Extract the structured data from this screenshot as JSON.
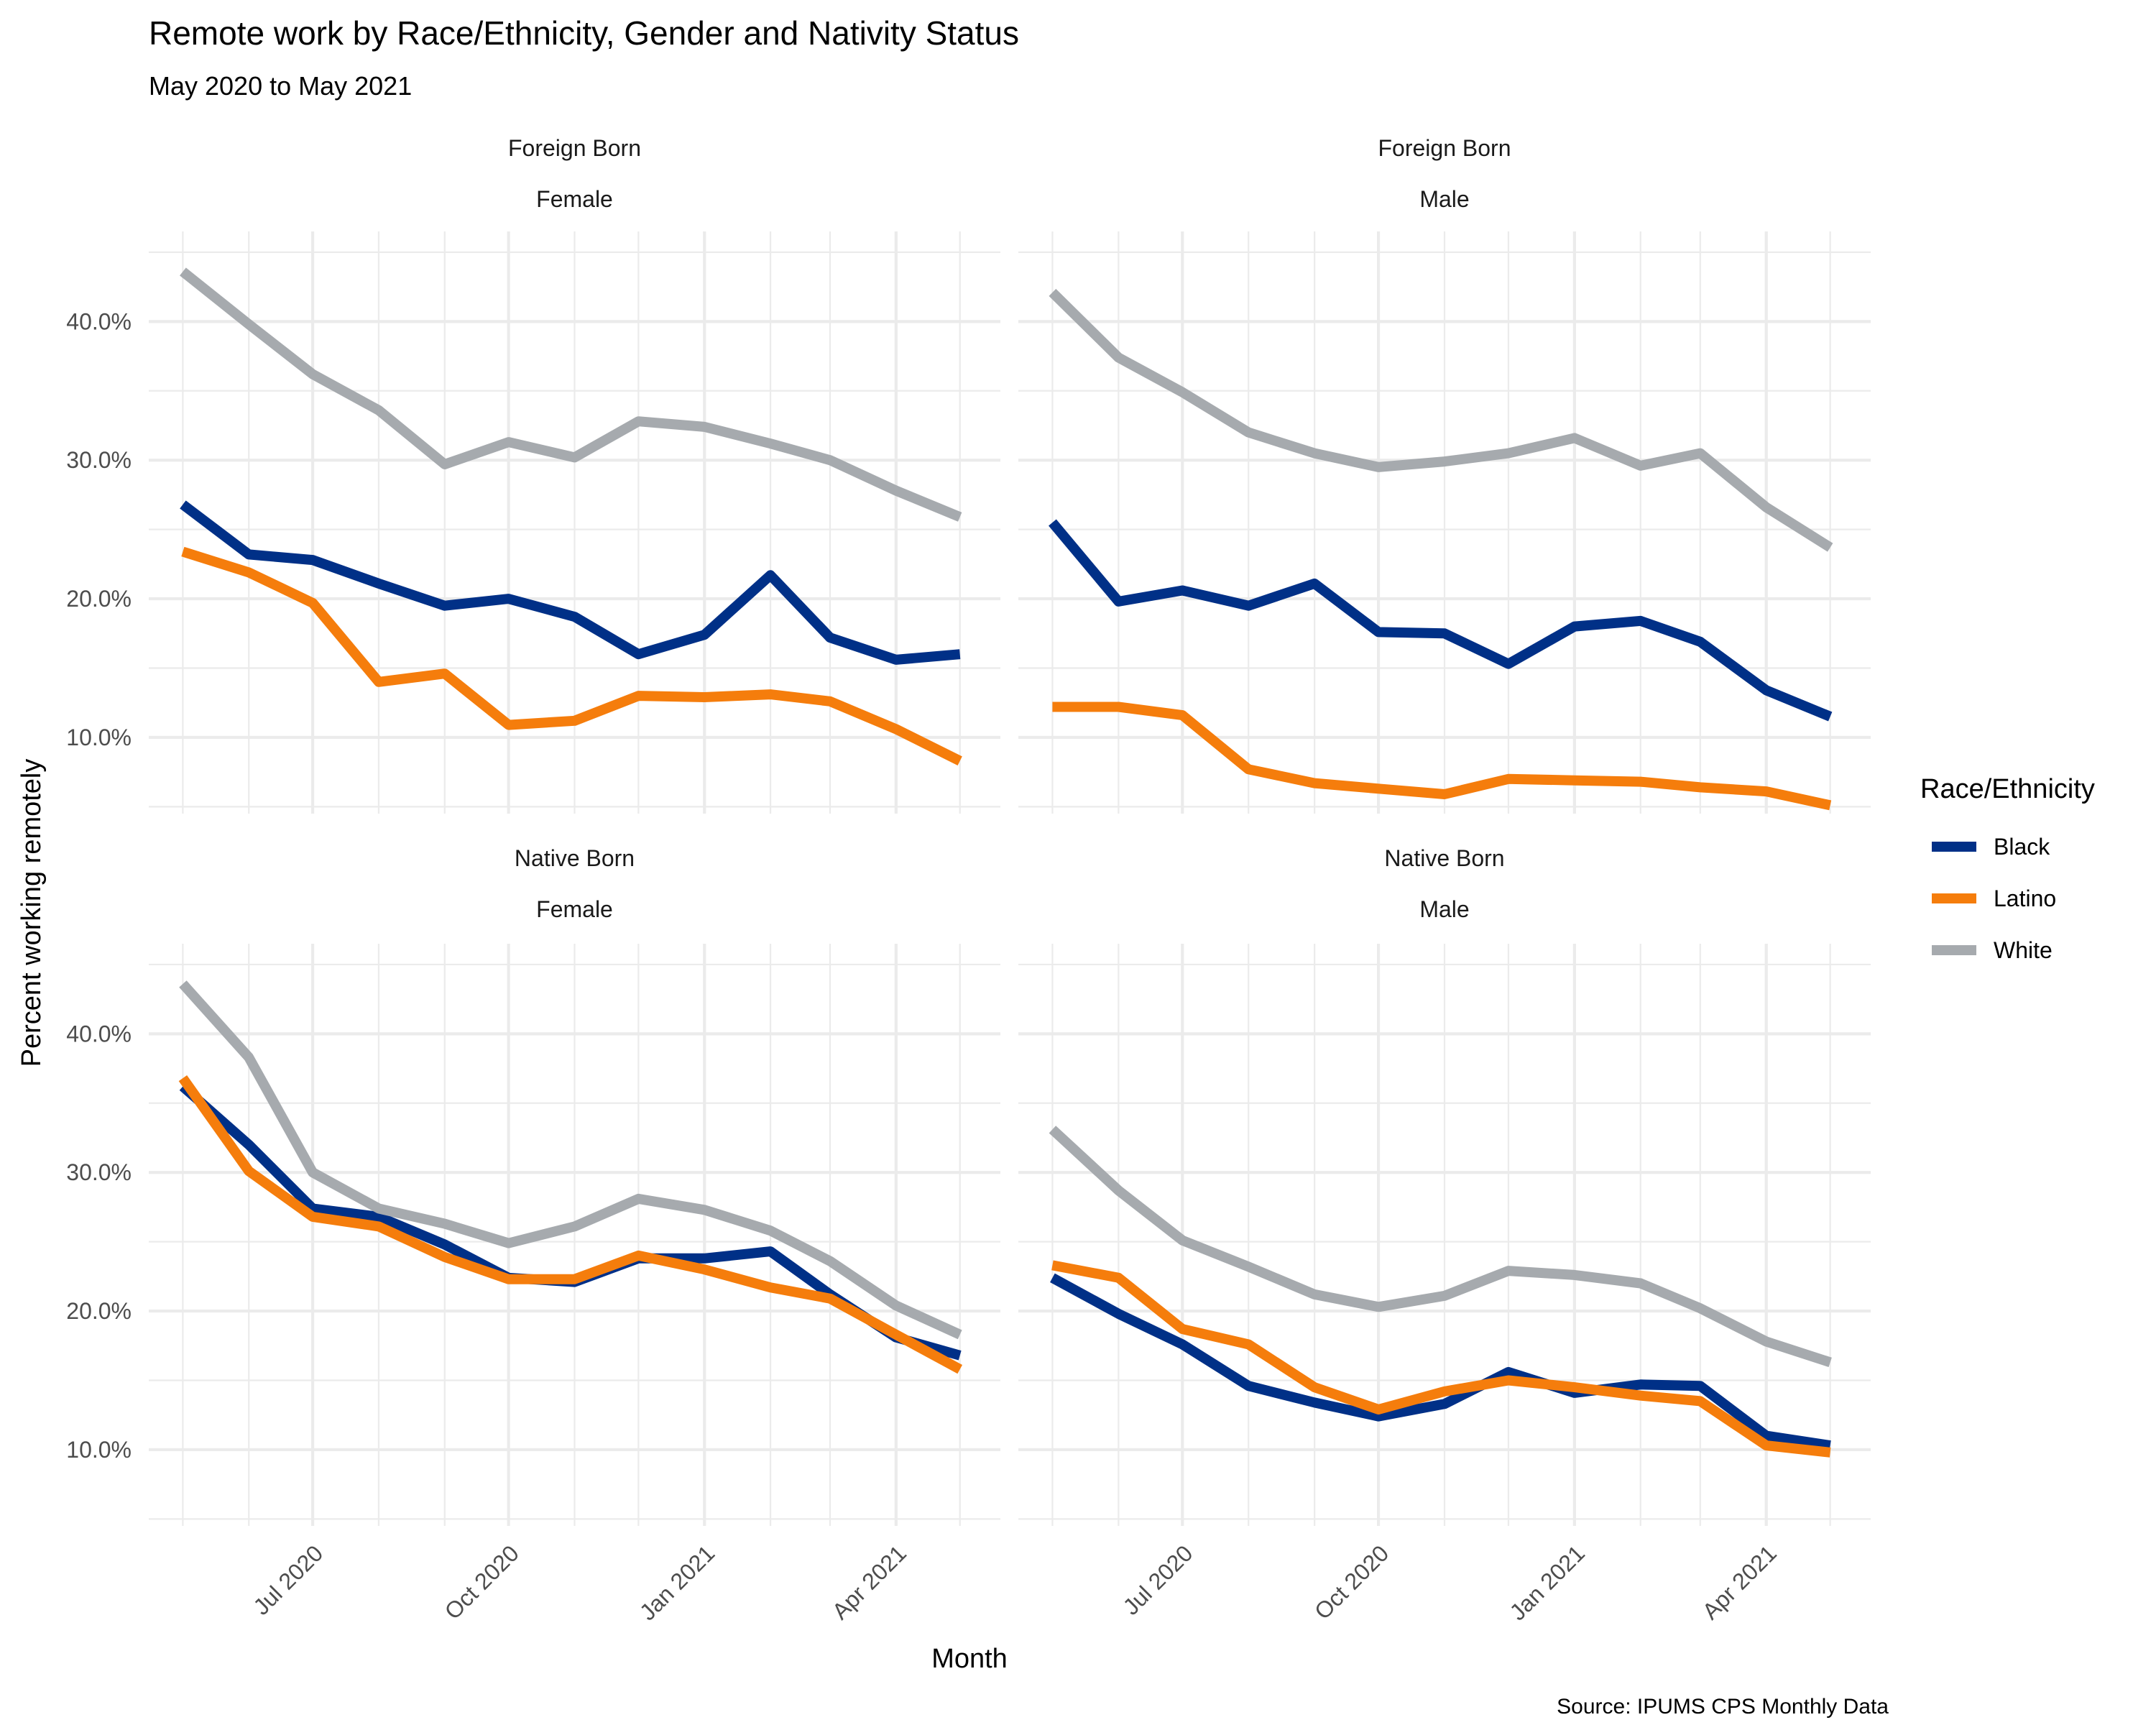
{
  "chart_data": {
    "type": "line",
    "title": "Remote work by Race/Ethnicity, Gender and Nativity Status",
    "subtitle": "May 2020 to May 2021",
    "xlabel": "Month",
    "ylabel": "Percent working remotely",
    "caption": "Source: IPUMS CPS Monthly Data",
    "x": [
      "2020-05",
      "2020-06",
      "2020-07",
      "2020-08",
      "2020-09",
      "2020-10",
      "2020-11",
      "2020-12",
      "2021-01",
      "2021-02",
      "2021-03",
      "2021-04",
      "2021-05"
    ],
    "xlim": [
      "2020-04-15",
      "2021-05-20"
    ],
    "x_ticks": [
      {
        "date": "2020-07-01",
        "label": "Jul 2020"
      },
      {
        "date": "2020-10-01",
        "label": "Oct 2020"
      },
      {
        "date": "2021-01-01",
        "label": "Jan 2021"
      },
      {
        "date": "2021-04-01",
        "label": "Apr 2021"
      }
    ],
    "ylim": [
      0.045,
      0.465
    ],
    "y_ticks": [
      {
        "value": 0.1,
        "label": "10.0%"
      },
      {
        "value": 0.2,
        "label": "20.0%"
      },
      {
        "value": 0.3,
        "label": "30.0%"
      },
      {
        "value": 0.4,
        "label": "40.0%"
      }
    ],
    "grid": true,
    "legend": {
      "title": "Race/Ethnicity",
      "position": "right",
      "entries": [
        {
          "name": "Black",
          "color": "#003087"
        },
        {
          "name": "Latino",
          "color": "#F57D0C"
        },
        {
          "name": " White",
          "color": "#A6AAAE"
        }
      ]
    },
    "panels": [
      {
        "strip_top": "Foreign Born",
        "strip_bottom": "Female",
        "series": [
          {
            "name": "Black",
            "values": [
              0.268,
              0.232,
              0.228,
              0.211,
              0.195,
              0.2,
              0.187,
              0.16,
              0.174,
              0.217,
              0.172,
              0.156,
              0.16
            ]
          },
          {
            "name": "Latino",
            "values": [
              0.234,
              0.219,
              0.197,
              0.14,
              0.146,
              0.109,
              0.112,
              0.13,
              0.129,
              0.131,
              0.126,
              0.106,
              0.083
            ]
          },
          {
            "name": " White",
            "values": [
              0.436,
              0.398,
              0.362,
              0.336,
              0.297,
              0.313,
              0.302,
              0.328,
              0.324,
              0.312,
              0.3,
              0.278,
              0.259
            ]
          }
        ]
      },
      {
        "strip_top": "Foreign Born",
        "strip_bottom": "Male",
        "series": [
          {
            "name": "Black",
            "values": [
              0.255,
              0.198,
              0.206,
              0.195,
              0.211,
              0.176,
              0.175,
              0.153,
              0.18,
              0.184,
              0.169,
              0.134,
              0.115
            ]
          },
          {
            "name": "Latino",
            "values": [
              0.122,
              0.122,
              0.116,
              0.077,
              0.067,
              0.063,
              0.059,
              0.07,
              0.069,
              0.068,
              0.064,
              0.061,
              0.051
            ]
          },
          {
            "name": " White",
            "values": [
              0.421,
              0.374,
              0.349,
              0.32,
              0.305,
              0.295,
              0.299,
              0.305,
              0.316,
              0.296,
              0.305,
              0.266,
              0.237
            ]
          }
        ]
      },
      {
        "strip_top": "Native Born",
        "strip_bottom": "Female",
        "series": [
          {
            "name": "Black",
            "values": [
              0.362,
              0.32,
              0.274,
              0.268,
              0.248,
              0.224,
              0.221,
              0.238,
              0.238,
              0.243,
              0.212,
              0.181,
              0.168
            ]
          },
          {
            "name": "Latino",
            "values": [
              0.368,
              0.301,
              0.268,
              0.261,
              0.239,
              0.223,
              0.223,
              0.24,
              0.23,
              0.217,
              0.209,
              0.183,
              0.158
            ]
          },
          {
            "name": " White",
            "values": [
              0.436,
              0.383,
              0.3,
              0.274,
              0.263,
              0.249,
              0.261,
              0.281,
              0.273,
              0.258,
              0.236,
              0.204,
              0.183
            ]
          }
        ]
      },
      {
        "strip_top": "Native Born",
        "strip_bottom": "Male",
        "series": [
          {
            "name": "Black",
            "values": [
              0.224,
              0.198,
              0.176,
              0.146,
              0.134,
              0.124,
              0.133,
              0.156,
              0.141,
              0.147,
              0.146,
              0.11,
              0.103
            ]
          },
          {
            "name": "Latino",
            "values": [
              0.233,
              0.224,
              0.187,
              0.176,
              0.145,
              0.129,
              0.142,
              0.15,
              0.145,
              0.139,
              0.135,
              0.103,
              0.098
            ]
          },
          {
            "name": " White",
            "values": [
              0.331,
              0.287,
              0.251,
              0.232,
              0.212,
              0.203,
              0.211,
              0.229,
              0.226,
              0.22,
              0.202,
              0.178,
              0.163
            ]
          }
        ]
      }
    ]
  }
}
